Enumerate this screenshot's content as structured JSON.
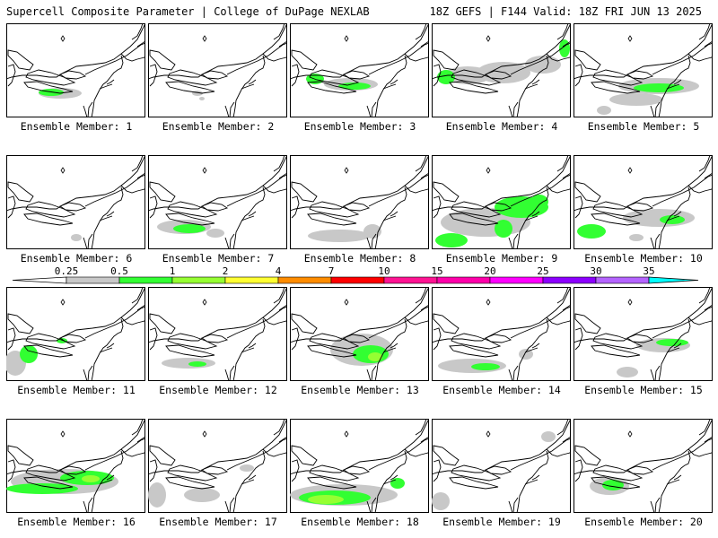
{
  "header": {
    "left": "Supercell Composite Parameter | College of DuPage NEXLAB",
    "right": "18Z GEFS | F144 Valid: 18Z FRI JUN 13 2025"
  },
  "members": [
    {
      "label": "Ensemble Member: 1"
    },
    {
      "label": "Ensemble Member: 2"
    },
    {
      "label": "Ensemble Member: 3"
    },
    {
      "label": "Ensemble Member: 4"
    },
    {
      "label": "Ensemble Member: 5"
    },
    {
      "label": "Ensemble Member: 6"
    },
    {
      "label": "Ensemble Member: 7"
    },
    {
      "label": "Ensemble Member: 8"
    },
    {
      "label": "Ensemble Member: 9"
    },
    {
      "label": "Ensemble Member: 10"
    },
    {
      "label": "Ensemble Member: 11"
    },
    {
      "label": "Ensemble Member: 12"
    },
    {
      "label": "Ensemble Member: 13"
    },
    {
      "label": "Ensemble Member: 14"
    },
    {
      "label": "Ensemble Member: 15"
    },
    {
      "label": "Ensemble Member: 16"
    },
    {
      "label": "Ensemble Member: 17"
    },
    {
      "label": "Ensemble Member: 18"
    },
    {
      "label": "Ensemble Member: 19"
    },
    {
      "label": "Ensemble Member: 20"
    }
  ],
  "colorbar": {
    "ticks": [
      "0.25",
      "0.5",
      "1",
      "2",
      "4",
      "7",
      "10",
      "15",
      "20",
      "25",
      "30",
      "35"
    ],
    "colors": [
      "#c8c8c8",
      "#32ff32",
      "#96ff32",
      "#ffff32",
      "#ff8c00",
      "#ff0000",
      "#ff1493",
      "#ff00aa",
      "#ff00ff",
      "#8c00ff",
      "#b464ff"
    ],
    "under_color": "#ffffff",
    "over_color": "#00ffff"
  }
}
